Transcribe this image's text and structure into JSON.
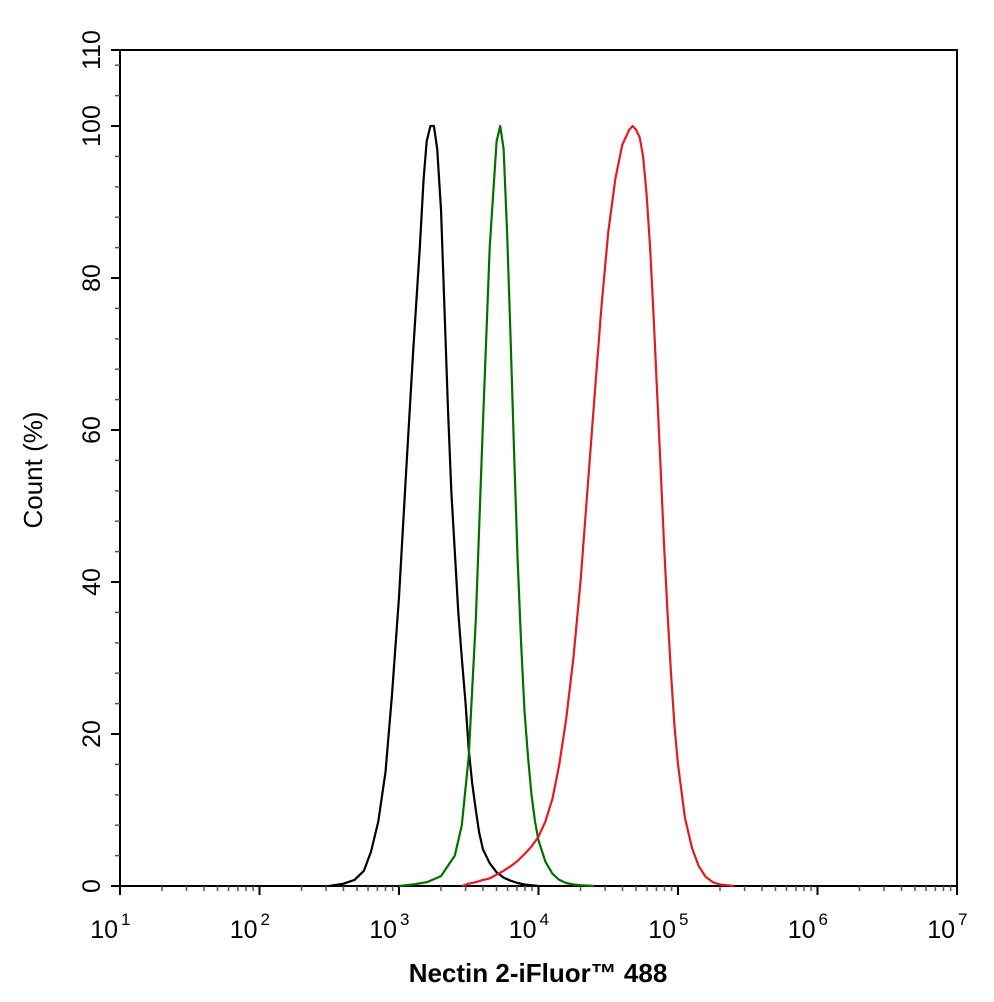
{
  "chart_data": {
    "type": "line",
    "xlabel": "Nectin 2-iFluor™ 488",
    "ylabel": "Count  (%)",
    "xscale": "log",
    "xlim": [
      10,
      10000000
    ],
    "ylim": [
      0,
      110
    ],
    "x_ticks": [
      {
        "base": "10",
        "exp": "1",
        "value": 10
      },
      {
        "base": "10",
        "exp": "2",
        "value": 100
      },
      {
        "base": "10",
        "exp": "3",
        "value": 1000
      },
      {
        "base": "10",
        "exp": "4",
        "value": 10000
      },
      {
        "base": "10",
        "exp": "5",
        "value": 100000
      },
      {
        "base": "10",
        "exp": "6",
        "value": 1000000
      },
      {
        "base": "10",
        "exp": "7",
        "value": 10000000
      }
    ],
    "y_ticks": [
      0,
      20,
      40,
      60,
      80,
      100,
      110
    ],
    "grid": false,
    "legend": "none",
    "series": [
      {
        "color": "#000000",
        "x": [
          316,
          400,
          480,
          560,
          630,
          710,
          800,
          890,
          1000,
          1120,
          1260,
          1410,
          1500,
          1580,
          1680,
          1780,
          1880,
          2000,
          2110,
          2240,
          2370,
          2510,
          2660,
          2820,
          3000,
          3160,
          3350,
          3550,
          3760,
          4000,
          4470,
          5010,
          5620,
          6310,
          7080,
          7940,
          8910,
          10000
        ],
        "y": [
          0,
          0.3,
          0.8,
          2,
          4.5,
          8.5,
          15,
          25,
          38,
          54,
          70,
          84,
          93,
          98,
          100,
          100,
          97,
          89,
          77,
          63,
          52,
          44,
          36,
          30,
          24,
          18,
          13.5,
          10,
          7,
          4.8,
          3,
          1.8,
          1.1,
          0.7,
          0.4,
          0.2,
          0.1,
          0
        ]
      },
      {
        "color": "#007000",
        "x": [
          1000,
          1260,
          1580,
          2000,
          2510,
          2820,
          3160,
          3550,
          3980,
          4470,
          5010,
          5310,
          5620,
          5960,
          6310,
          6680,
          7080,
          7500,
          7940,
          8410,
          8910,
          9440,
          10000,
          11200,
          12600,
          14100,
          15800,
          17800,
          20000,
          25100
        ],
        "y": [
          0,
          0.2,
          0.5,
          1.3,
          4,
          8,
          17,
          35,
          60,
          84,
          98,
          100,
          97,
          86,
          72,
          57,
          43,
          32,
          23,
          17,
          12,
          8.5,
          6,
          3.2,
          1.6,
          0.8,
          0.4,
          0.2,
          0.1,
          0
        ]
      },
      {
        "color": "#e41a1c",
        "x": [
          2820,
          3160,
          3550,
          4000,
          4470,
          5010,
          5620,
          6310,
          7080,
          7940,
          8910,
          10000,
          11200,
          12600,
          14100,
          15800,
          17800,
          20000,
          22400,
          25100,
          28200,
          31600,
          35500,
          39800,
          44700,
          47300,
          50100,
          53100,
          56200,
          59600,
          63100,
          66800,
          70800,
          75000,
          79400,
          84100,
          89100,
          94400,
          100000,
          112000,
          126000,
          141000,
          158000,
          178000,
          200000,
          224000,
          251000
        ],
        "y": [
          0,
          0.3,
          0.5,
          0.8,
          1,
          1.5,
          2,
          2.6,
          3.3,
          4.2,
          5.2,
          6.5,
          8.5,
          11.5,
          16,
          22,
          30,
          40,
          52,
          64,
          76,
          86,
          93,
          97.5,
          99.5,
          100,
          99.5,
          98.5,
          96,
          91,
          84,
          75,
          65,
          55,
          45,
          36,
          28,
          21,
          16,
          9,
          5,
          2.6,
          1.2,
          0.5,
          0.2,
          0.1,
          0
        ]
      }
    ]
  }
}
